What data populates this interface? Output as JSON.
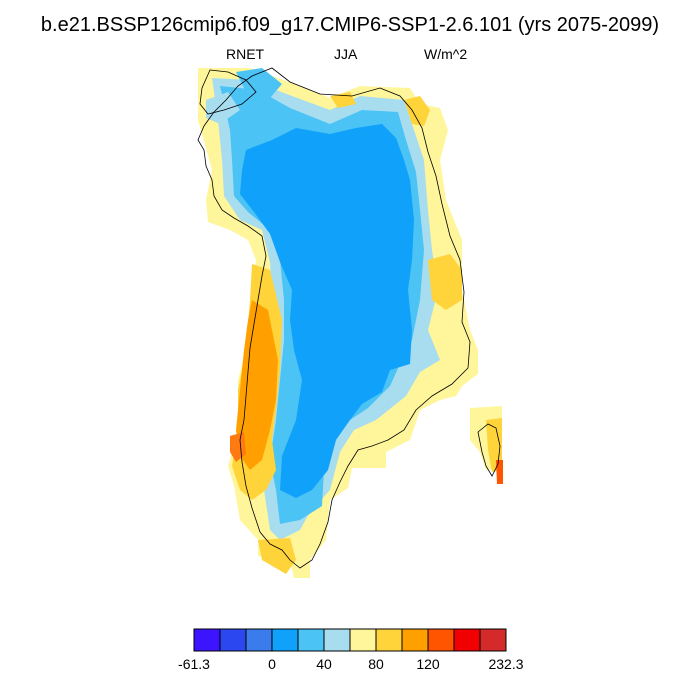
{
  "title": "b.e21.BSSP126cmip6.f09_g17.CMIP6-SSP1-2.6.101 (yrs 2075-2099)",
  "variable": "RNET",
  "season": "JJA",
  "units": "W/m^2",
  "colorbar": {
    "colors": [
      "#3c14ff",
      "#2b47f0",
      "#3b7cec",
      "#10a1fa",
      "#4bc3f5",
      "#a8ddf0",
      "#fff59a",
      "#ffd43a",
      "#ffa000",
      "#ff5400",
      "#f00000",
      "#d42a2a"
    ],
    "tick_labels": [
      "-61.3",
      "0",
      "40",
      "80",
      "120",
      "232.3"
    ]
  },
  "colors": {
    "coast": "#000000",
    "bar_outline": "#000000"
  }
}
